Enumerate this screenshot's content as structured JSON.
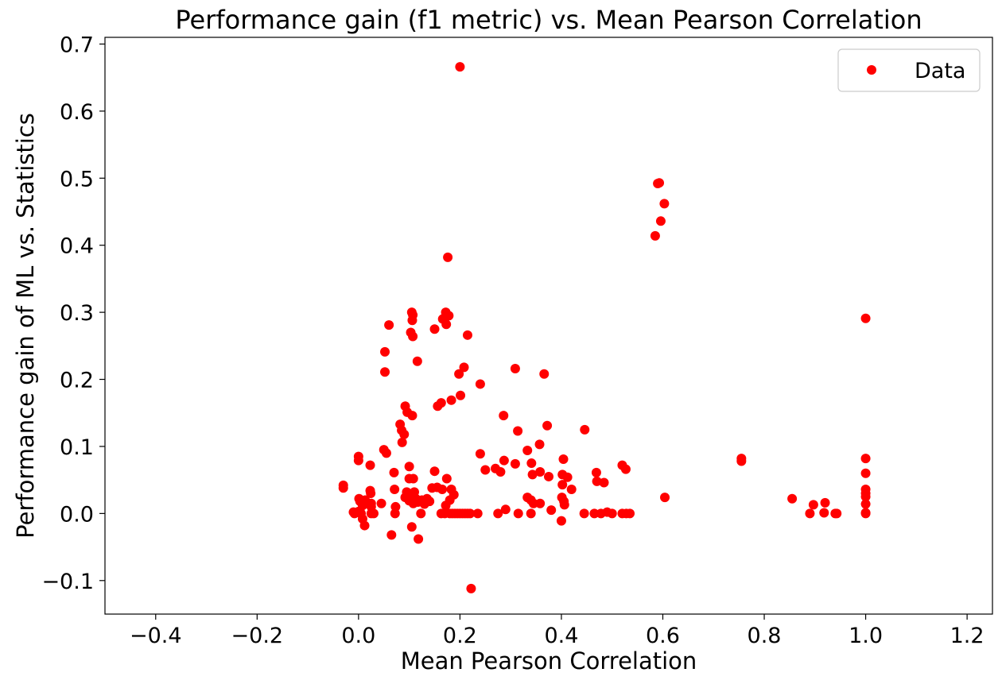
{
  "chart_data": {
    "type": "scatter",
    "title": "Performance gain (f1 metric) vs. Mean Pearson Correlation",
    "xlabel": "Mean Pearson Correlation",
    "ylabel": "Performance gain of ML vs. Statistics",
    "xlim": [
      -0.5,
      1.25
    ],
    "ylim": [
      -0.15,
      0.71
    ],
    "xticks": [
      -0.4,
      -0.2,
      0.0,
      0.2,
      0.4,
      0.6,
      0.8,
      1.0,
      1.2
    ],
    "xtick_labels": [
      "−0.4",
      "−0.2",
      "0.0",
      "0.2",
      "0.4",
      "0.6",
      "0.8",
      "1.0",
      "1.2"
    ],
    "yticks": [
      -0.1,
      0.0,
      0.1,
      0.2,
      0.3,
      0.4,
      0.5,
      0.6,
      0.7
    ],
    "ytick_labels": [
      "−0.1",
      "0.0",
      "0.1",
      "0.2",
      "0.3",
      "0.4",
      "0.5",
      "0.6",
      "0.7"
    ],
    "grid": false,
    "legend_position": "top-right",
    "marker_color": "#ff0000",
    "series": [
      {
        "name": "Data",
        "color": "#ff0000",
        "points": [
          [
            0.2,
            0.666
          ],
          [
            0.176,
            0.382
          ],
          [
            0.59,
            0.492
          ],
          [
            0.593,
            0.493
          ],
          [
            0.603,
            0.462
          ],
          [
            0.596,
            0.436
          ],
          [
            0.585,
            0.414
          ],
          [
            1.0,
            0.291
          ],
          [
            0.105,
            0.3
          ],
          [
            0.107,
            0.296
          ],
          [
            0.106,
            0.288
          ],
          [
            0.103,
            0.27
          ],
          [
            0.107,
            0.264
          ],
          [
            0.172,
            0.3
          ],
          [
            0.178,
            0.295
          ],
          [
            0.166,
            0.29
          ],
          [
            0.173,
            0.282
          ],
          [
            0.15,
            0.275
          ],
          [
            0.215,
            0.266
          ],
          [
            0.06,
            0.281
          ],
          [
            0.052,
            0.241
          ],
          [
            0.116,
            0.227
          ],
          [
            0.052,
            0.211
          ],
          [
            0.208,
            0.218
          ],
          [
            0.198,
            0.208
          ],
          [
            0.309,
            0.216
          ],
          [
            0.366,
            0.208
          ],
          [
            0.24,
            0.193
          ],
          [
            0.201,
            0.176
          ],
          [
            0.183,
            0.169
          ],
          [
            0.163,
            0.165
          ],
          [
            0.156,
            0.16
          ],
          [
            0.092,
            0.16
          ],
          [
            0.096,
            0.151
          ],
          [
            0.106,
            0.146
          ],
          [
            0.286,
            0.146
          ],
          [
            0.082,
            0.133
          ],
          [
            0.085,
            0.124
          ],
          [
            0.09,
            0.118
          ],
          [
            0.086,
            0.106
          ],
          [
            0.314,
            0.123
          ],
          [
            0.372,
            0.131
          ],
          [
            0.446,
            0.125
          ],
          [
            0.05,
            0.095
          ],
          [
            0.055,
            0.09
          ],
          [
            0.24,
            0.089
          ],
          [
            0.333,
            0.094
          ],
          [
            0.357,
            0.103
          ],
          [
            0.0,
            0.085
          ],
          [
            0.0,
            0.079
          ],
          [
            0.287,
            0.079
          ],
          [
            0.309,
            0.074
          ],
          [
            0.341,
            0.075
          ],
          [
            0.404,
            0.081
          ],
          [
            0.755,
            0.082
          ],
          [
            0.755,
            0.078
          ],
          [
            1.0,
            0.082
          ],
          [
            0.1,
            0.07
          ],
          [
            0.023,
            0.072
          ],
          [
            0.15,
            0.063
          ],
          [
            0.25,
            0.065
          ],
          [
            0.27,
            0.067
          ],
          [
            0.28,
            0.062
          ],
          [
            0.343,
            0.058
          ],
          [
            0.358,
            0.062
          ],
          [
            0.375,
            0.055
          ],
          [
            0.402,
            0.058
          ],
          [
            0.412,
            0.054
          ],
          [
            0.469,
            0.061
          ],
          [
            0.47,
            0.048
          ],
          [
            0.484,
            0.046
          ],
          [
            0.52,
            0.072
          ],
          [
            0.527,
            0.066
          ],
          [
            1.0,
            0.06
          ],
          [
            0.07,
            0.061
          ],
          [
            0.1,
            0.052
          ],
          [
            0.108,
            0.052
          ],
          [
            0.174,
            0.052
          ],
          [
            0.402,
            0.043
          ],
          [
            0.42,
            0.036
          ],
          [
            1.0,
            0.036
          ],
          [
            1.0,
            0.03
          ],
          [
            1.0,
            0.025
          ],
          [
            -0.03,
            0.042
          ],
          [
            -0.03,
            0.038
          ],
          [
            0.023,
            0.034
          ],
          [
            0.024,
            0.03
          ],
          [
            0.071,
            0.036
          ],
          [
            0.095,
            0.032
          ],
          [
            0.1,
            0.028
          ],
          [
            0.11,
            0.032
          ],
          [
            0.145,
            0.038
          ],
          [
            0.155,
            0.039
          ],
          [
            0.165,
            0.036
          ],
          [
            0.183,
            0.036
          ],
          [
            0.188,
            0.028
          ],
          [
            0.001,
            0.022
          ],
          [
            0.003,
            0.018
          ],
          [
            0.008,
            0.012
          ],
          [
            0.013,
            0.02
          ],
          [
            0.025,
            0.015
          ],
          [
            0.025,
            0.01
          ],
          [
            0.045,
            0.015
          ],
          [
            0.073,
            0.01
          ],
          [
            0.092,
            0.024
          ],
          [
            0.1,
            0.019
          ],
          [
            0.108,
            0.015
          ],
          [
            0.113,
            0.022
          ],
          [
            0.117,
            0.017
          ],
          [
            0.125,
            0.02
          ],
          [
            0.13,
            0.014
          ],
          [
            0.135,
            0.022
          ],
          [
            0.14,
            0.018
          ],
          [
            0.172,
            0.012
          ],
          [
            0.18,
            0.02
          ],
          [
            0.333,
            0.024
          ],
          [
            0.34,
            0.02
          ],
          [
            0.345,
            0.015
          ],
          [
            0.358,
            0.015
          ],
          [
            0.401,
            0.024
          ],
          [
            0.405,
            0.018
          ],
          [
            0.406,
            0.013
          ],
          [
            0.604,
            0.024
          ],
          [
            0.855,
            0.022
          ],
          [
            0.897,
            0.013
          ],
          [
            0.92,
            0.016
          ],
          [
            1.0,
            0.014
          ],
          [
            -0.01,
            0.002
          ],
          [
            -0.008,
            0.0
          ],
          [
            0.0,
            0.003
          ],
          [
            0.005,
            0.0
          ],
          [
            0.025,
            0.0
          ],
          [
            0.03,
            0.0
          ],
          [
            0.072,
            0.0
          ],
          [
            0.123,
            0.0
          ],
          [
            0.163,
            0.0
          ],
          [
            0.17,
            0.0
          ],
          [
            0.18,
            0.0
          ],
          [
            0.185,
            0.0
          ],
          [
            0.19,
            0.0
          ],
          [
            0.195,
            0.0
          ],
          [
            0.2,
            0.0
          ],
          [
            0.205,
            0.0
          ],
          [
            0.21,
            0.0
          ],
          [
            0.215,
            0.0
          ],
          [
            0.22,
            0.0
          ],
          [
            0.235,
            0.0
          ],
          [
            0.275,
            0.0
          ],
          [
            0.29,
            0.006
          ],
          [
            0.315,
            0.0
          ],
          [
            0.34,
            0.0
          ],
          [
            0.38,
            0.005
          ],
          [
            0.445,
            0.0
          ],
          [
            0.465,
            0.0
          ],
          [
            0.478,
            0.0
          ],
          [
            0.49,
            0.002
          ],
          [
            0.5,
            0.0
          ],
          [
            0.52,
            0.0
          ],
          [
            0.528,
            0.0
          ],
          [
            0.535,
            0.0
          ],
          [
            0.89,
            0.0
          ],
          [
            0.918,
            0.001
          ],
          [
            0.94,
            0.0
          ],
          [
            0.943,
            0.0
          ],
          [
            1.0,
            0.0
          ],
          [
            1.0,
            0.001
          ],
          [
            0.008,
            -0.008
          ],
          [
            0.012,
            -0.018
          ],
          [
            0.4,
            -0.011
          ],
          [
            0.065,
            -0.032
          ],
          [
            0.105,
            -0.02
          ],
          [
            0.118,
            -0.038
          ],
          [
            0.222,
            -0.112
          ]
        ]
      }
    ]
  }
}
